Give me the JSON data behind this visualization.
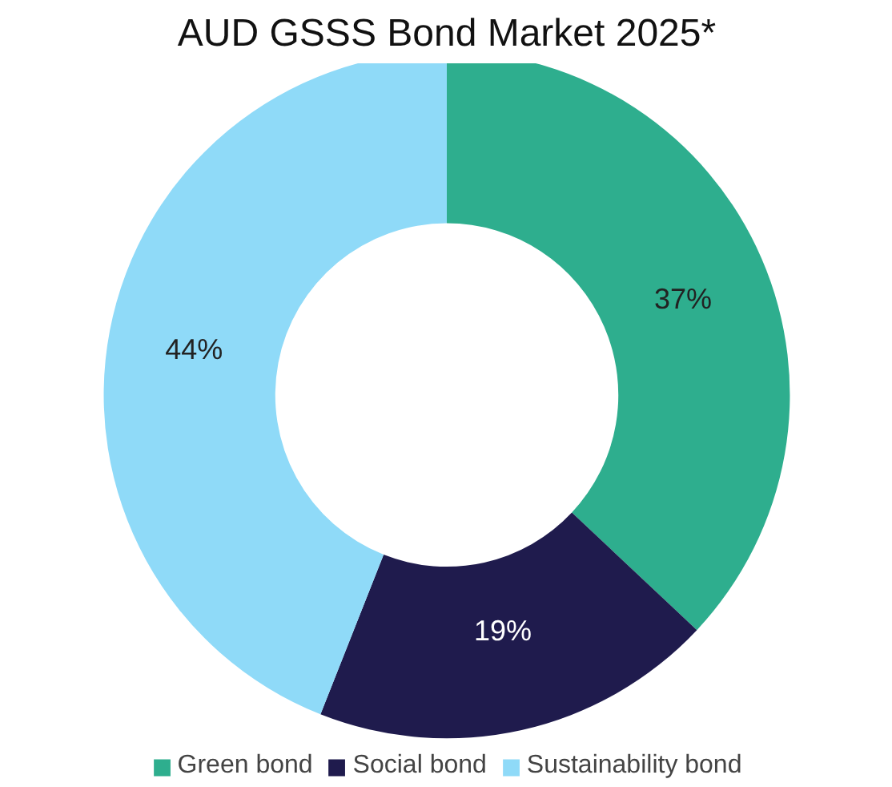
{
  "chart_data": {
    "type": "donut",
    "title": "AUD GSSS Bond Market 2025*",
    "categories": [
      "Green bond",
      "Social bond",
      "Sustainability bond"
    ],
    "values": [
      37,
      19,
      44
    ],
    "colors": [
      "#2eae8e",
      "#1f1b4d",
      "#8fdaf8"
    ],
    "value_labels": [
      "37%",
      "19%",
      "44%"
    ],
    "legend": "bottom"
  }
}
